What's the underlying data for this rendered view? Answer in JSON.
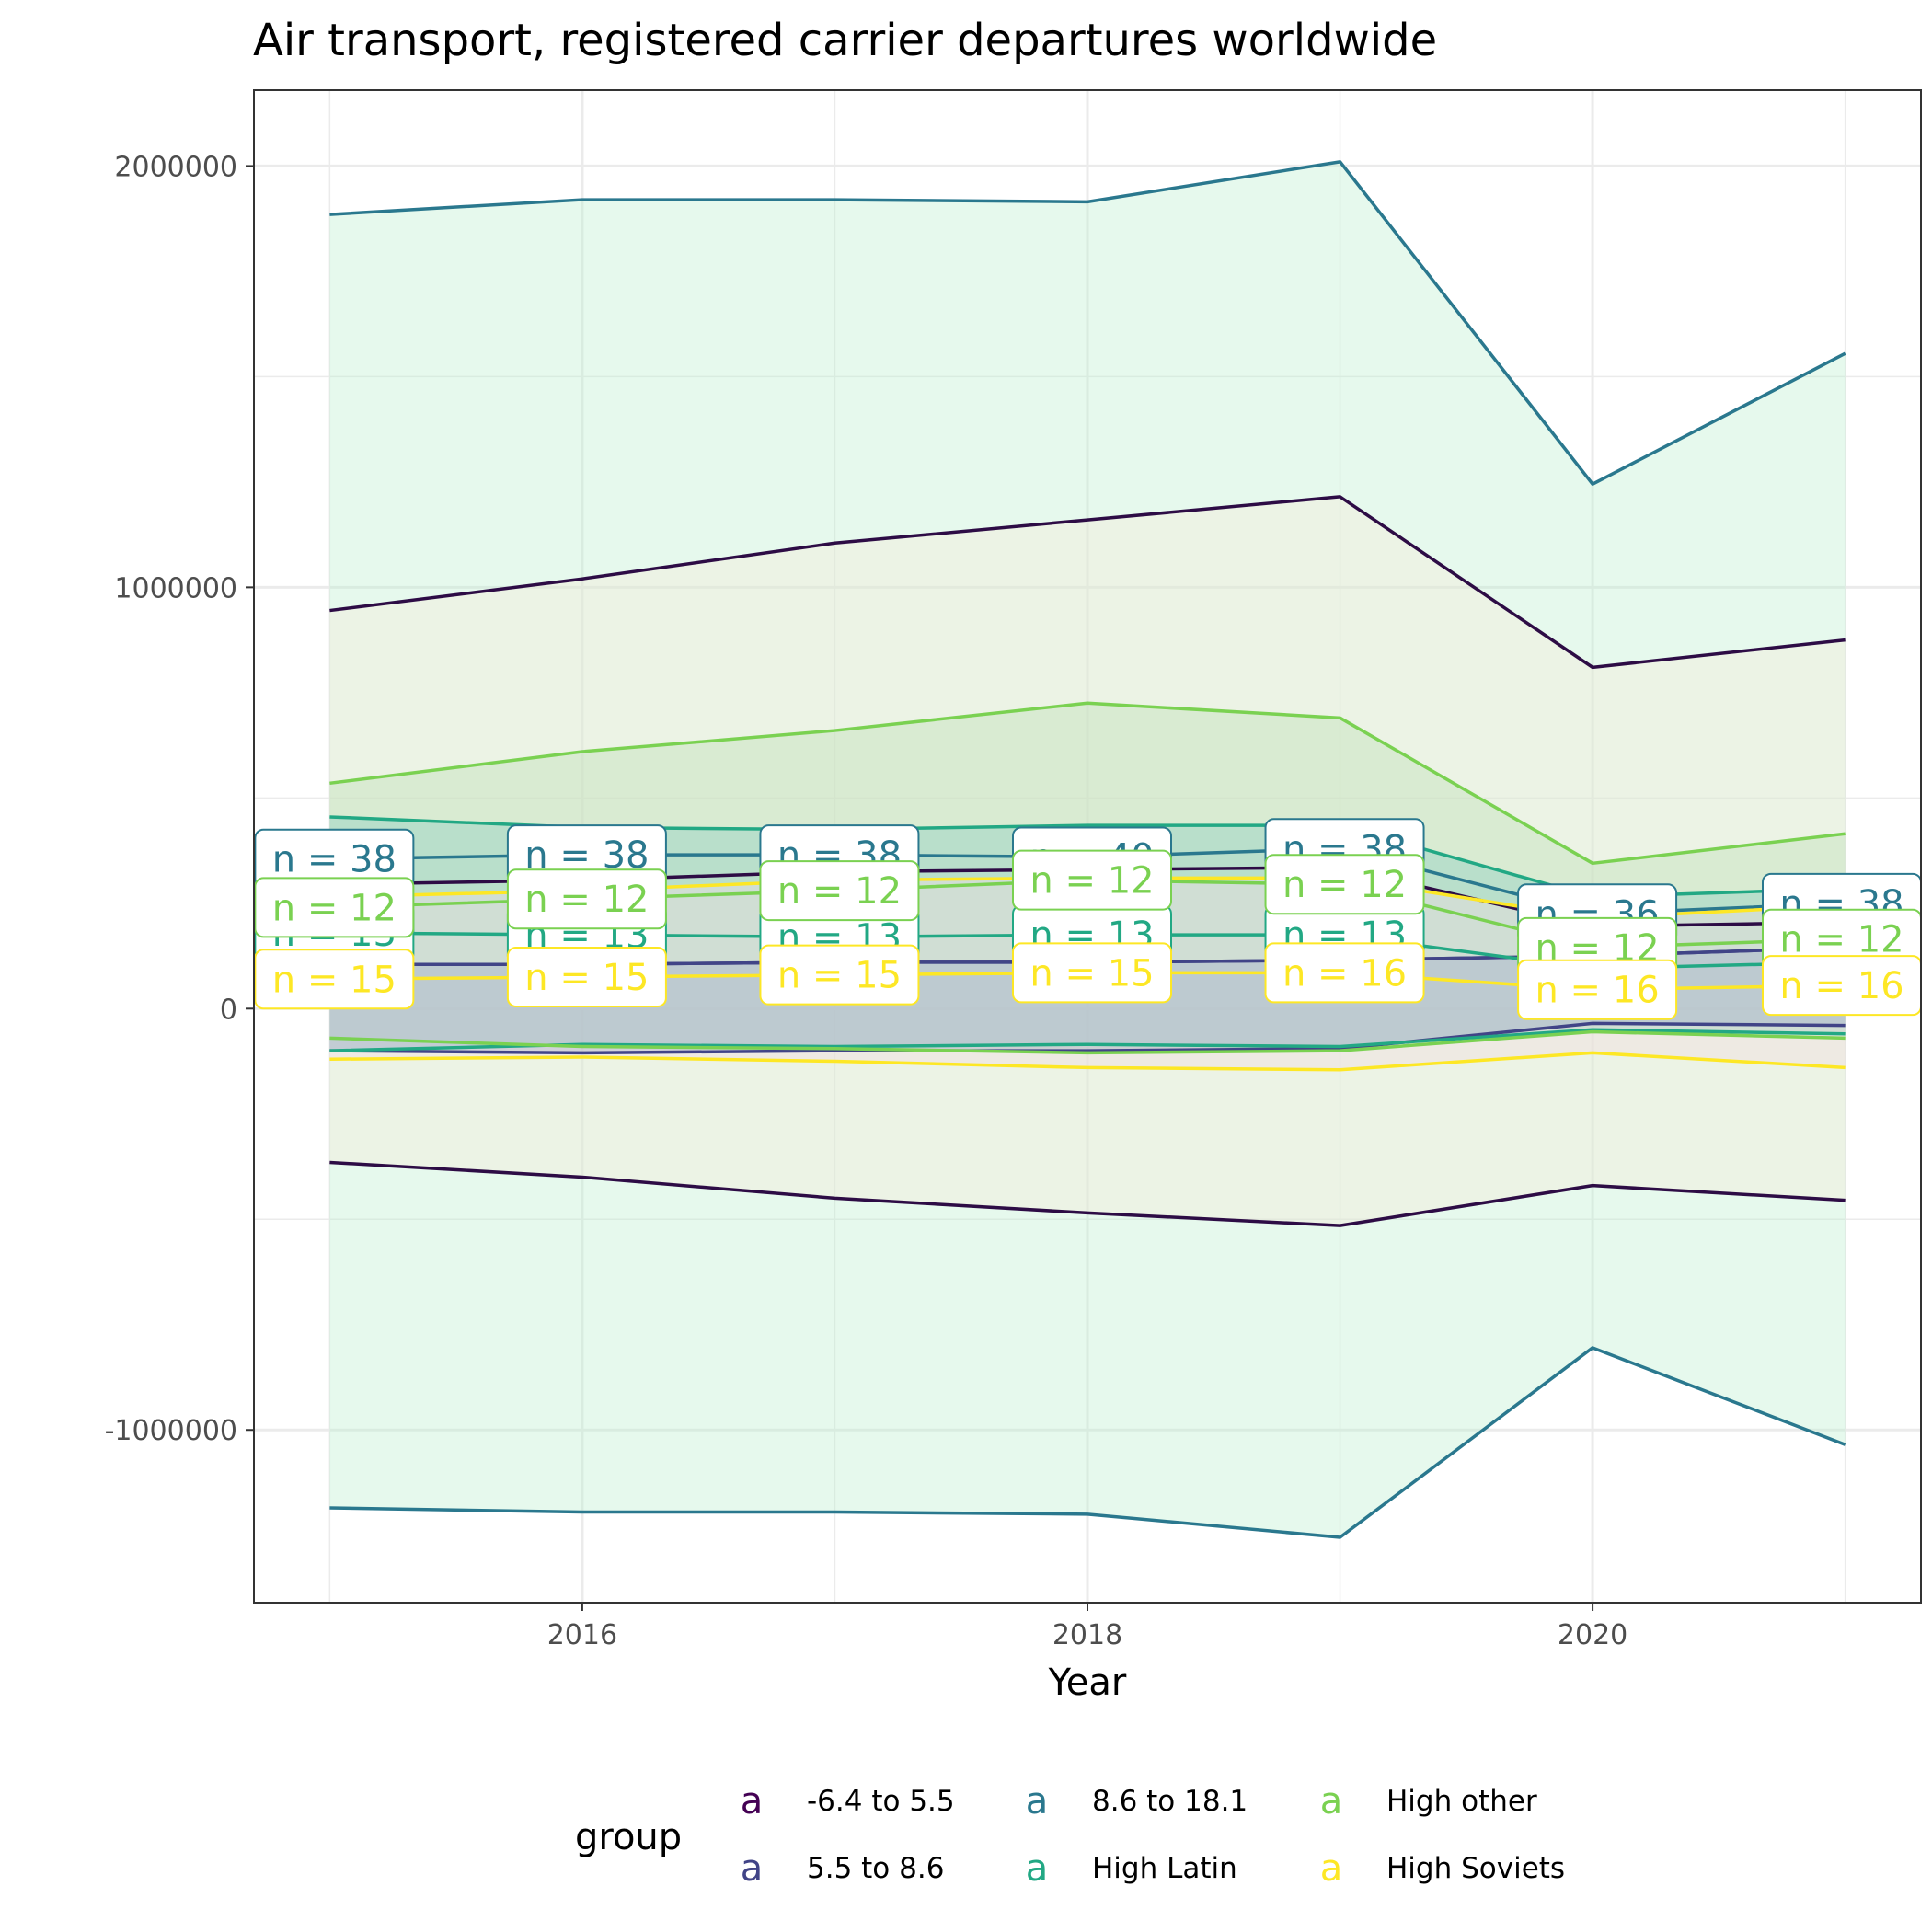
{
  "chart_data": {
    "type": "area",
    "title": "Air transport, registered carrier departures worldwide",
    "xlabel": "Year",
    "ylabel": "",
    "x": [
      2015,
      2016,
      2017,
      2018,
      2019,
      2020,
      2021
    ],
    "xlim": [
      2014.7,
      2021.3
    ],
    "ylim": [
      -1410000,
      2180000
    ],
    "x_ticks": [
      2016,
      2018,
      2020
    ],
    "x_tick_labels": [
      "2016",
      "2018",
      "2020"
    ],
    "y_ticks": [
      -1000000,
      0,
      1000000,
      2000000
    ],
    "y_tick_labels": [
      "-1000000",
      "0",
      "1000000",
      "2000000"
    ],
    "grid": true,
    "legend": {
      "title": "group",
      "position": "bottom",
      "key_glyph": "a",
      "entries": [
        {
          "name": "-6.4 to 5.5",
          "color": "#440154"
        },
        {
          "name": "5.5 to 8.6",
          "color": "#414487"
        },
        {
          "name": "8.6 to 18.1",
          "color": "#2A788E"
        },
        {
          "name": "High Latin",
          "color": "#22A884"
        },
        {
          "name": "High other",
          "color": "#7AD151"
        },
        {
          "name": "High Soviets",
          "color": "#FDE725"
        }
      ]
    },
    "series": [
      {
        "name": "-6.4 to 5.5",
        "color": "#440154",
        "line_color": "#2D0C45",
        "mean": [
          295000,
          305000,
          325000,
          330000,
          335000,
          195000,
          205000
        ],
        "upper": [
          945000,
          1020000,
          1105000,
          1160000,
          1215000,
          810000,
          875000
        ],
        "lower": [
          -365000,
          -400000,
          -450000,
          -485000,
          -515000,
          -420000,
          -455000
        ],
        "fill": "#F5E8D6",
        "fill_opacity": 0.35,
        "n_labels": [],
        "n_label_y": []
      },
      {
        "name": "5.5 to 8.6",
        "color": "#414487",
        "mean": [
          105000,
          105000,
          110000,
          110000,
          115000,
          125000,
          145000
        ],
        "upper": [
          105000,
          105000,
          110000,
          110000,
          115000,
          125000,
          145000
        ],
        "lower": [
          -100000,
          -105000,
          -100000,
          -100000,
          -95000,
          -35000,
          -40000
        ],
        "fill": "#9AA6C8",
        "fill_opacity": 0.35,
        "n_labels": [],
        "n_label_y": []
      },
      {
        "name": "8.6 to 18.1",
        "color": "#2A788E",
        "mean": [
          355000,
          365000,
          365000,
          360000,
          380000,
          225000,
          250000
        ],
        "upper": [
          1885000,
          1920000,
          1920000,
          1915000,
          2010000,
          1245000,
          1555000
        ],
        "lower": [
          -1185000,
          -1195000,
          -1195000,
          -1200000,
          -1255000,
          -805000,
          -1035000
        ],
        "fill": "#BDEFCF",
        "fill_opacity": 0.38,
        "n_labels": [
          "n = 38",
          "n = 38",
          "n = 38",
          "n = 40",
          "n = 38",
          "n = 36",
          "n = 38"
        ],
        "n_label_y": [
          355000,
          365000,
          365000,
          360000,
          380000,
          225000,
          250000
        ]
      },
      {
        "name": "High Latin",
        "color": "#22A884",
        "mean": [
          180000,
          175000,
          170000,
          175000,
          175000,
          95000,
          110000
        ],
        "upper": [
          455000,
          430000,
          425000,
          435000,
          435000,
          265000,
          285000
        ],
        "lower": [
          -100000,
          -85000,
          -90000,
          -85000,
          -90000,
          -50000,
          -60000
        ],
        "fill": "#7FC8C0",
        "fill_opacity": 0.35,
        "n_labels": [
          "n = 13",
          "n = 13",
          "n = 13",
          "n = 13",
          "n = 13"
        ],
        "n_label_y": [
          180000,
          175000,
          170000,
          175000,
          175000
        ]
      },
      {
        "name": "High other",
        "color": "#7AD151",
        "mean": [
          240000,
          260000,
          280000,
          305000,
          295000,
          145000,
          165000
        ],
        "upper": [
          535000,
          610000,
          660000,
          725000,
          690000,
          345000,
          415000
        ],
        "lower": [
          -70000,
          -90000,
          -95000,
          -105000,
          -100000,
          -55000,
          -70000
        ],
        "fill": "#B8DDB0",
        "fill_opacity": 0.35,
        "n_labels": [
          "n = 12",
          "n = 12",
          "n = 12",
          "n = 12",
          "n = 12",
          "n = 12",
          "n = 12"
        ],
        "n_label_y": [
          240000,
          260000,
          280000,
          305000,
          295000,
          145000,
          165000
        ]
      },
      {
        "name": "High Soviets",
        "color": "#FDE725",
        "mean": [
          70000,
          75000,
          80000,
          85000,
          85000,
          45000,
          55000
        ],
        "upper": [
          265000,
          280000,
          305000,
          310000,
          310000,
          215000,
          245000
        ],
        "lower": [
          -120000,
          -115000,
          -125000,
          -140000,
          -145000,
          -105000,
          -140000
        ],
        "fill": "#F3DCE0",
        "fill_opacity": 0.4,
        "n_labels": [
          "n = 15",
          "n = 15",
          "n = 15",
          "n = 15",
          "n = 16",
          "n = 16",
          "n = 16"
        ],
        "n_label_y": [
          70000,
          75000,
          80000,
          85000,
          85000,
          45000,
          55000
        ]
      }
    ]
  }
}
